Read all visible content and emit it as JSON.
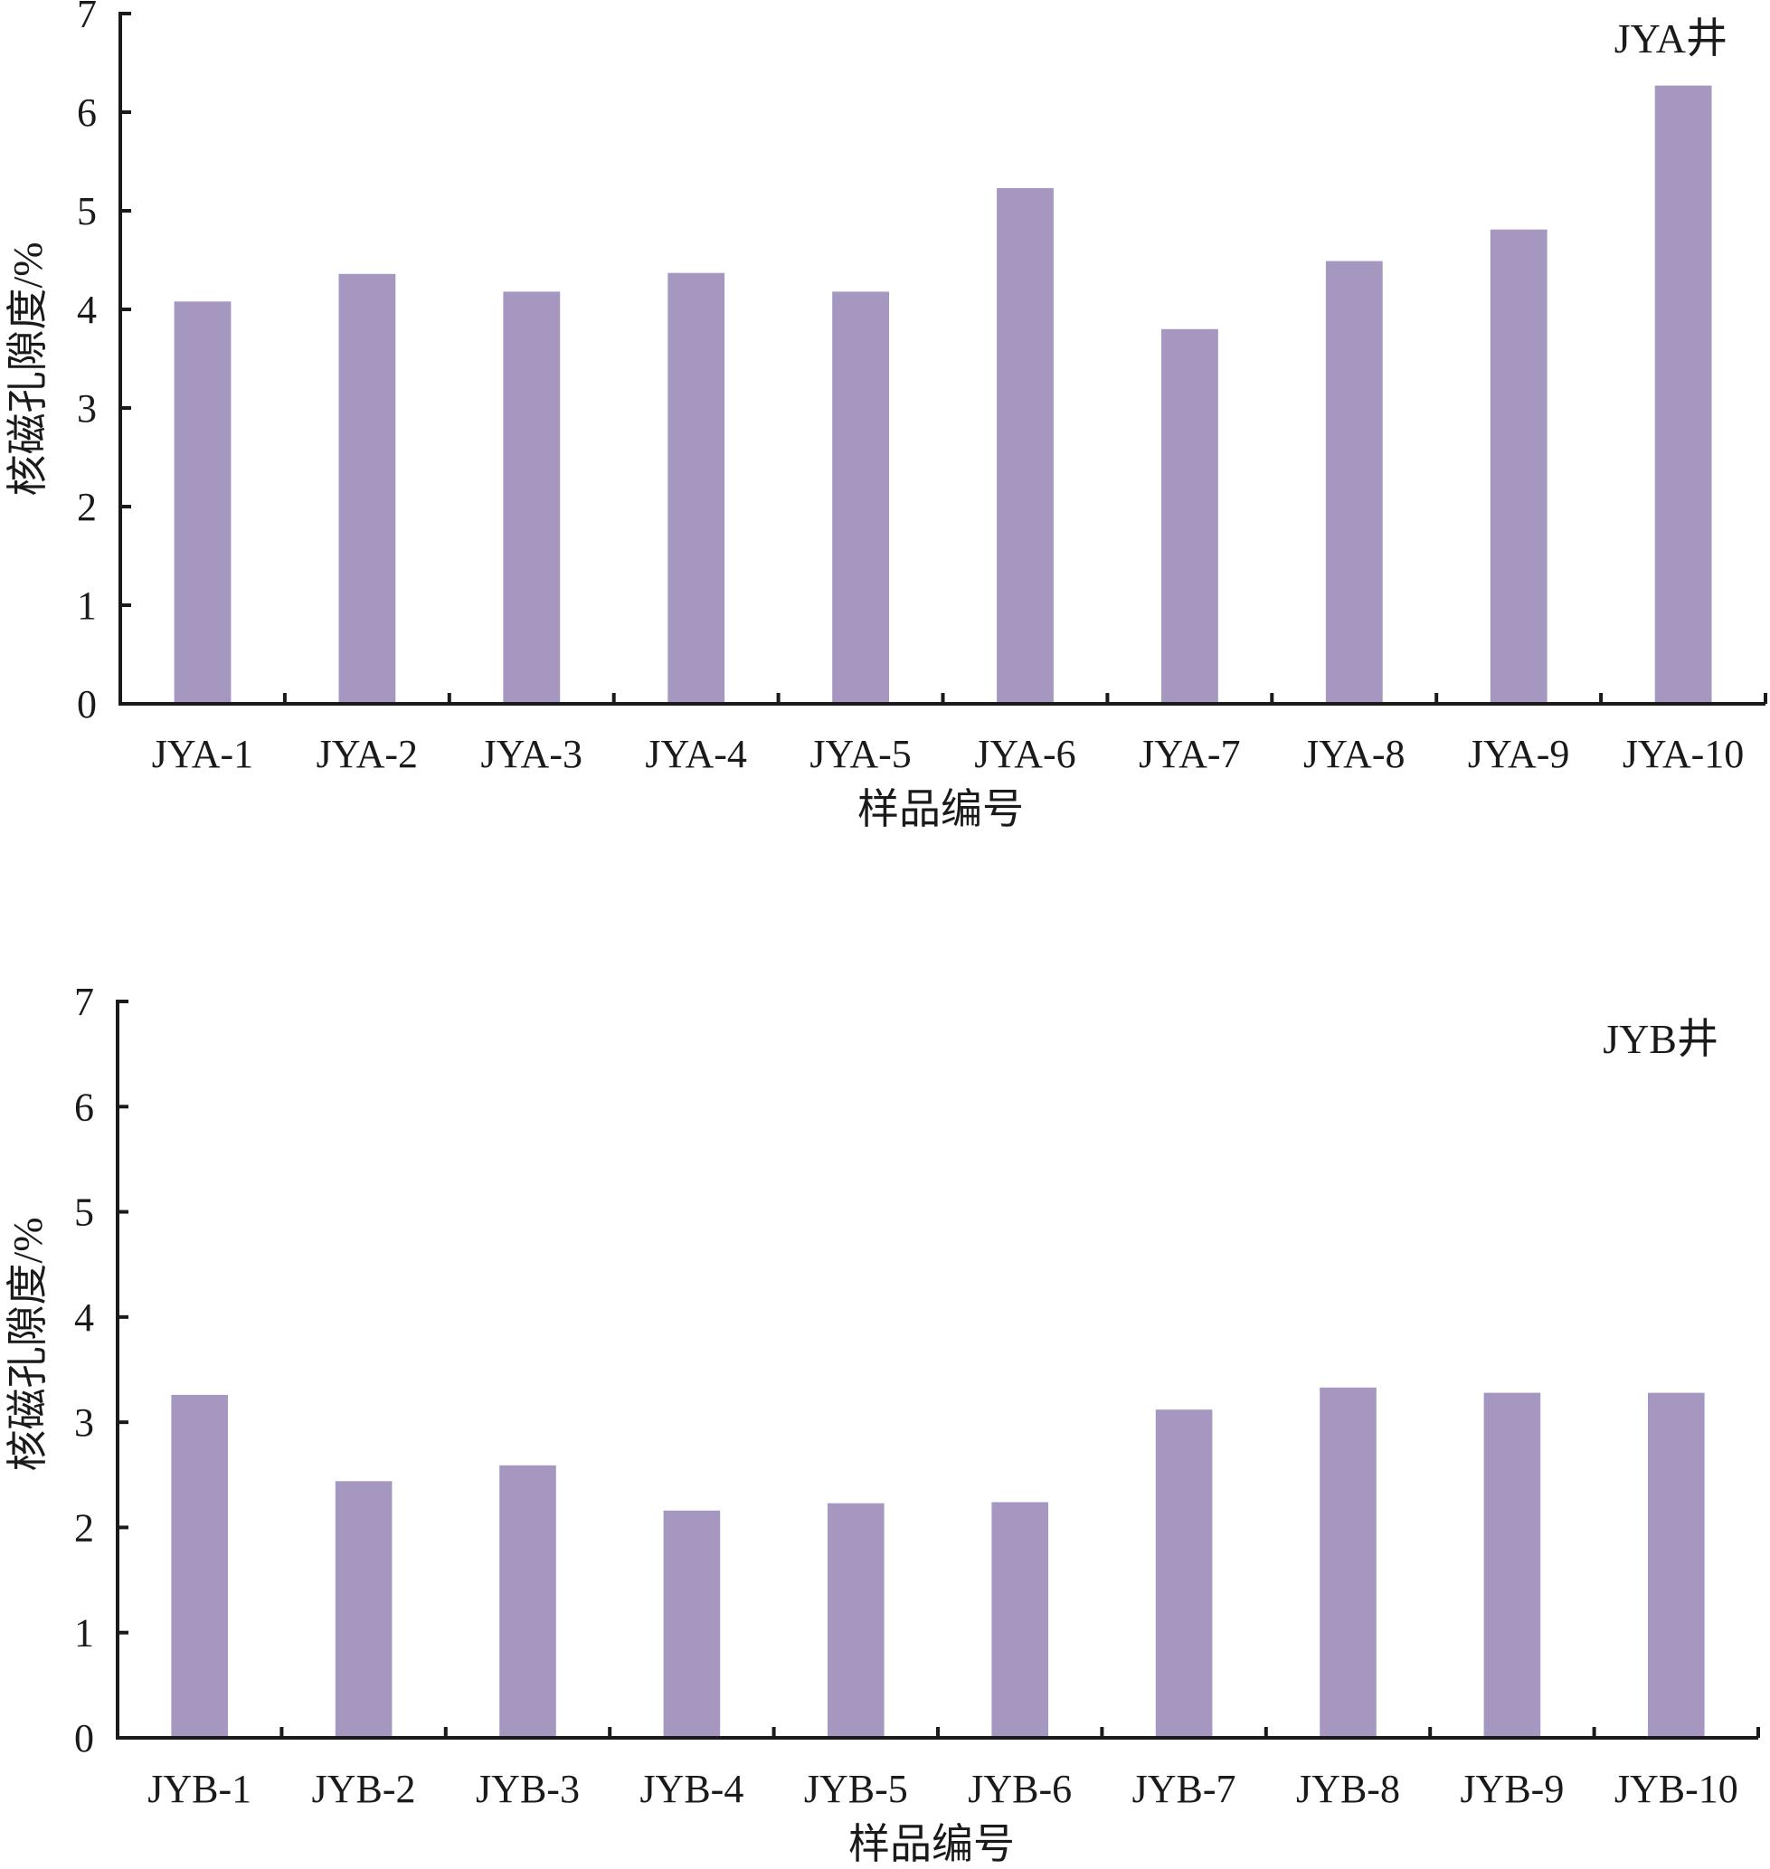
{
  "chart_data": [
    {
      "type": "bar",
      "panel_label": "JYA井",
      "xlabel": "样品编号",
      "ylabel": "核磁孔隙度/%",
      "ylim": [
        0,
        7
      ],
      "yticks": [
        "0",
        "1",
        "2",
        "3",
        "4",
        "5",
        "6",
        "7"
      ],
      "categories": [
        "JYA-1",
        "JYA-2",
        "JYA-3",
        "JYA-4",
        "JYA-5",
        "JYA-6",
        "JYA-7",
        "JYA-8",
        "JYA-9",
        "JYA-10"
      ],
      "values": [
        4.08,
        4.36,
        4.18,
        4.37,
        4.18,
        5.23,
        3.8,
        4.49,
        4.81,
        6.27
      ],
      "bar_color": "#a597c0",
      "grid": false
    },
    {
      "type": "bar",
      "panel_label": "JYB井",
      "xlabel": "样品编号",
      "ylabel": "核磁孔隙度/%",
      "ylim": [
        0,
        7
      ],
      "yticks": [
        "0",
        "1",
        "2",
        "3",
        "4",
        "5",
        "6",
        "7"
      ],
      "categories": [
        "JYB-1",
        "JYB-2",
        "JYB-3",
        "JYB-4",
        "JYB-5",
        "JYB-6",
        "JYB-7",
        "JYB-8",
        "JYB-9",
        "JYB-10"
      ],
      "values": [
        3.26,
        2.44,
        2.59,
        2.16,
        2.23,
        2.24,
        3.12,
        3.33,
        3.28,
        3.28
      ],
      "bar_color": "#a597c0",
      "grid": false
    }
  ]
}
